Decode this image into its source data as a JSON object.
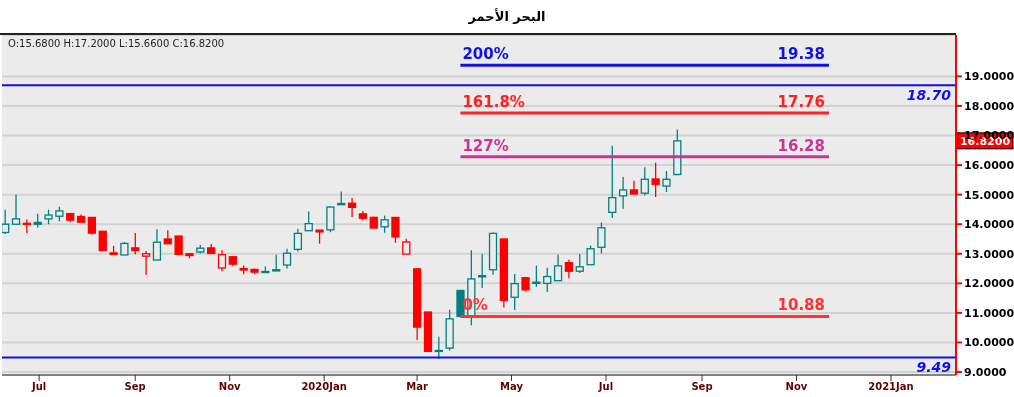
{
  "chart_data": {
    "type": "candlestick",
    "title": "البحر الأحمر",
    "annotations": [
      "O:15.6800   H:17.2000   L:15.6600   C:16.8200",
      "16.8200"
    ],
    "x": [
      "2019-06-09",
      "2019-06-16",
      "2019-06-23",
      "2019-06-30",
      "2019-07-07",
      "2019-07-14",
      "2019-07-21",
      "2019-07-28",
      "2019-08-04",
      "2019-08-11",
      "2019-08-18",
      "2019-08-25",
      "2019-09-01",
      "2019-09-08",
      "2019-09-15",
      "2019-09-22",
      "2019-09-29",
      "2019-10-06",
      "2019-10-13",
      "2019-10-20",
      "2019-10-27",
      "2019-11-03",
      "2019-11-10",
      "2019-11-17",
      "2019-11-24",
      "2019-12-01",
      "2019-12-08",
      "2019-12-15",
      "2019-12-22",
      "2019-12-29",
      "2020-01-05",
      "2020-01-12",
      "2020-01-19",
      "2020-01-26",
      "2020-02-02",
      "2020-02-09",
      "2020-02-16",
      "2020-02-23",
      "2020-03-01",
      "2020-03-08",
      "2020-03-15",
      "2020-03-22",
      "2020-03-29",
      "2020-04-05",
      "2020-04-12",
      "2020-04-19",
      "2020-04-26",
      "2020-05-03",
      "2020-05-10",
      "2020-05-17",
      "2020-05-24",
      "2020-05-31",
      "2020-06-07",
      "2020-06-14",
      "2020-06-21",
      "2020-06-28",
      "2020-07-05",
      "2020-07-12",
      "2020-07-19",
      "2020-07-26",
      "2020-08-02",
      "2020-08-09",
      "2020-08-16"
    ],
    "ohlc": [
      [
        13.72,
        14.49,
        13.67,
        14.0
      ],
      [
        14.0,
        15.0,
        13.97,
        14.18
      ],
      [
        14.03,
        14.16,
        13.7,
        14.01
      ],
      [
        14.06,
        14.35,
        13.89,
        14.0
      ],
      [
        14.18,
        14.49,
        14.0,
        14.31
      ],
      [
        14.27,
        14.59,
        14.1,
        14.45
      ],
      [
        14.36,
        14.36,
        14.07,
        14.14
      ],
      [
        14.26,
        14.33,
        14.07,
        14.07
      ],
      [
        14.23,
        14.23,
        13.64,
        13.7
      ],
      [
        13.76,
        13.76,
        13.11,
        13.11
      ],
      [
        13.03,
        13.27,
        12.98,
        12.98
      ],
      [
        12.96,
        13.4,
        12.96,
        13.35
      ],
      [
        13.2,
        13.7,
        12.98,
        13.11
      ],
      [
        12.92,
        13.09,
        12.28,
        13.0
      ],
      [
        12.79,
        13.83,
        12.79,
        13.39
      ],
      [
        13.5,
        13.8,
        13.34,
        13.34
      ],
      [
        13.6,
        13.6,
        12.98,
        12.98
      ],
      [
        13.0,
        13.03,
        12.85,
        12.94
      ],
      [
        13.06,
        13.3,
        13.01,
        13.19
      ],
      [
        13.2,
        13.33,
        13.01,
        13.01
      ],
      [
        12.52,
        13.12,
        12.41,
        12.97
      ],
      [
        12.9,
        12.9,
        12.58,
        12.65
      ],
      [
        12.5,
        12.6,
        12.31,
        12.45
      ],
      [
        12.47,
        12.5,
        12.31,
        12.38
      ],
      [
        12.37,
        12.57,
        12.35,
        12.4
      ],
      [
        12.46,
        12.97,
        12.42,
        12.42
      ],
      [
        12.62,
        13.17,
        12.5,
        13.02
      ],
      [
        13.15,
        13.85,
        13.08,
        13.69
      ],
      [
        13.78,
        14.43,
        13.78,
        14.02
      ],
      [
        13.8,
        13.8,
        13.34,
        13.74
      ],
      [
        13.81,
        14.61,
        13.73,
        14.58
      ],
      [
        14.7,
        15.11,
        14.66,
        14.66
      ],
      [
        14.71,
        14.89,
        14.24,
        14.57
      ],
      [
        14.35,
        14.45,
        14.13,
        14.2
      ],
      [
        14.23,
        14.26,
        13.87,
        13.87
      ],
      [
        13.91,
        14.29,
        13.71,
        14.15
      ],
      [
        14.23,
        14.23,
        13.37,
        13.57
      ],
      [
        12.99,
        13.51,
        12.99,
        13.4
      ],
      [
        12.49,
        12.51,
        10.08,
        10.52
      ],
      [
        11.03,
        11.03,
        9.7,
        9.7
      ],
      [
        9.71,
        10.19,
        9.44,
        9.73
      ],
      [
        9.81,
        11.11,
        9.73,
        10.8
      ],
      [
        11.76,
        11.76,
        10.85,
        10.88
      ],
      [
        10.88,
        13.12,
        10.58,
        12.15
      ],
      [
        12.26,
        13.0,
        11.84,
        12.22
      ],
      [
        12.46,
        13.72,
        12.29,
        13.69
      ],
      [
        13.5,
        13.5,
        11.18,
        11.42
      ],
      [
        11.53,
        12.32,
        11.1,
        11.99
      ],
      [
        12.19,
        12.22,
        11.72,
        11.78
      ],
      [
        12.04,
        12.6,
        11.88,
        12.0
      ],
      [
        12.0,
        12.53,
        11.71,
        12.23
      ],
      [
        12.09,
        12.97,
        12.09,
        12.59
      ],
      [
        12.7,
        12.8,
        12.17,
        12.41
      ],
      [
        12.41,
        12.99,
        12.35,
        12.56
      ],
      [
        12.63,
        13.28,
        12.63,
        13.17
      ],
      [
        13.22,
        14.06,
        13.01,
        13.88
      ],
      [
        14.4,
        16.65,
        14.21,
        14.9
      ],
      [
        14.96,
        15.6,
        14.52,
        15.16
      ],
      [
        15.16,
        15.47,
        15.02,
        15.02
      ],
      [
        15.05,
        15.93,
        14.98,
        15.52
      ],
      [
        15.53,
        16.08,
        14.92,
        15.35
      ],
      [
        15.29,
        15.8,
        15.09,
        15.52
      ],
      [
        15.68,
        17.2,
        15.66,
        16.82
      ]
    ],
    "colors": [
      "#008080",
      "#008080",
      "#ff0000",
      "#008080",
      "#008080",
      "#008080",
      "#ff0000",
      "#ff0000",
      "#ff0000",
      "#ff0000",
      "#ff0000",
      "#008080",
      "#ff0000",
      "#ff0000",
      "#008080",
      "#ff0000",
      "#ff0000",
      "#ff0000",
      "#008080",
      "#ff0000",
      "#ff0000",
      "#ff0000",
      "#ff0000",
      "#ff0000",
      "#008080",
      "#008080",
      "#008080",
      "#008080",
      "#008080",
      "#ff0000",
      "#008080",
      "#008080",
      "#ff0000",
      "#ff0000",
      "#ff0000",
      "#008080",
      "#ff0000",
      "#ff0000",
      "#ff0000",
      "#ff0000",
      "#008080",
      "#008080",
      "#008080",
      "#008080",
      "#008080",
      "#008080",
      "#ff0000",
      "#008080",
      "#ff0000",
      "#008080",
      "#008080",
      "#008080",
      "#ff0000",
      "#008080",
      "#008080",
      "#008080",
      "#008080",
      "#008080",
      "#ff0000",
      "#008080",
      "#ff0000",
      "#008080",
      "#008080"
    ],
    "series": [
      {
        "name": "200%",
        "type": "line",
        "color": "#1010ee",
        "x": [
          "2020-03-29",
          "2020-11-22"
        ],
        "values": [
          19.38,
          19.38
        ],
        "value_labels": [
          null,
          "19.38"
        ]
      },
      {
        "name": "161.8%",
        "type": "line",
        "color": "#ff2020",
        "x": [
          "2020-03-29",
          "2020-11-22"
        ],
        "values": [
          17.76,
          17.76
        ],
        "value_labels": [
          null,
          "17.76"
        ]
      },
      {
        "name": "127%",
        "type": "line",
        "color": "#cc3399",
        "x": [
          "2020-03-29",
          "2020-11-22"
        ],
        "values": [
          16.28,
          16.28
        ],
        "value_labels": [
          null,
          "16.28"
        ]
      },
      {
        "name": "0%",
        "type": "line",
        "color": "#ff3333",
        "x": [
          "2020-03-29",
          "2020-11-22"
        ],
        "values": [
          10.88,
          10.88
        ],
        "value_labels": [
          null,
          "10.88"
        ]
      }
    ],
    "ref_lines": [
      {
        "axis": "y",
        "value": 18.7,
        "label": "18.70",
        "color": "#1010ee"
      },
      {
        "axis": "y",
        "value": 9.49,
        "label": "9.49",
        "color": "#1010ee"
      }
    ],
    "xlim": [
      "2019-06-07",
      "2021-02-12"
    ],
    "xticks": [
      {
        "value": "2019-07-01",
        "label": "Jul"
      },
      {
        "value": "2019-09-01",
        "label": "Sep"
      },
      {
        "value": "2019-11-01",
        "label": "Nov"
      },
      {
        "value": "2020-01-01",
        "label": "2020Jan"
      },
      {
        "value": "2020-03-01",
        "label": "Mar"
      },
      {
        "value": "2020-05-01",
        "label": "May"
      },
      {
        "value": "2020-07-01",
        "label": "Jul"
      },
      {
        "value": "2020-09-01",
        "label": "Sep"
      },
      {
        "value": "2020-11-01",
        "label": "Nov"
      },
      {
        "value": "2021-01-01",
        "label": "2021Jan"
      }
    ],
    "ylim": [
      8.9,
      20.4
    ],
    "yticks": [
      {
        "value": 9,
        "label": "9.0000"
      },
      {
        "value": 10,
        "label": "10.0000"
      },
      {
        "value": 11,
        "label": "11.0000"
      },
      {
        "value": 12,
        "label": "12.0000"
      },
      {
        "value": 13,
        "label": "13.0000"
      },
      {
        "value": 14,
        "label": "14.0000"
      },
      {
        "value": 15,
        "label": "15.0000"
      },
      {
        "value": 16,
        "label": "16.0000"
      },
      {
        "value": 17,
        "label": "17.0000"
      },
      {
        "value": 18,
        "label": "18.0000"
      },
      {
        "value": 19,
        "label": "19.0000"
      }
    ],
    "grid": "y",
    "legend": false
  }
}
